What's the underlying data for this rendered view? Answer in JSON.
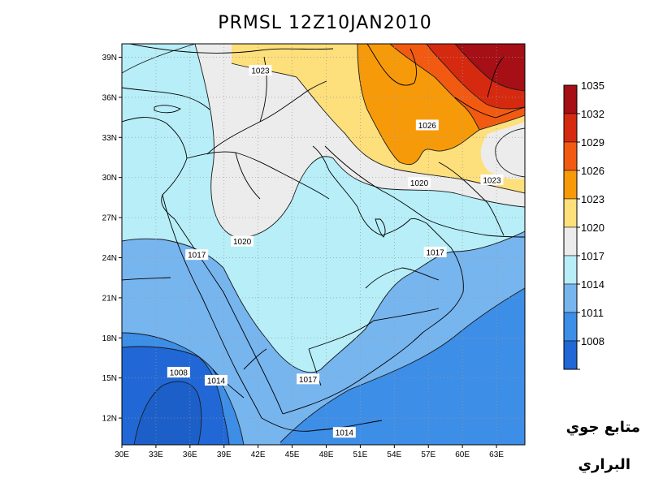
{
  "title": "PRMSL 12Z10JAN2010",
  "lon_ticks": [
    "30E",
    "33E",
    "36E",
    "39E",
    "42E",
    "45E",
    "48E",
    "51E",
    "54E",
    "57E",
    "60E",
    "63E"
  ],
  "lat_ticks": [
    "12N",
    "15N",
    "18N",
    "21N",
    "24N",
    "27N",
    "30N",
    "33N",
    "36N",
    "39N"
  ],
  "contour_labels": [
    {
      "text": "1023",
      "lon": 42.2,
      "lat": 38.0
    },
    {
      "text": "1026",
      "lon": 56.9,
      "lat": 33.9
    },
    {
      "text": "1020",
      "lon": 56.2,
      "lat": 29.6
    },
    {
      "text": "1023",
      "lon": 62.6,
      "lat": 29.8
    },
    {
      "text": "1020",
      "lon": 40.6,
      "lat": 25.2
    },
    {
      "text": "1017",
      "lon": 36.6,
      "lat": 24.2
    },
    {
      "text": "1017",
      "lon": 57.6,
      "lat": 24.4
    },
    {
      "text": "1008",
      "lon": 35.0,
      "lat": 15.4
    },
    {
      "text": "1014",
      "lon": 38.3,
      "lat": 14.8
    },
    {
      "text": "1017",
      "lon": 46.4,
      "lat": 14.9
    },
    {
      "text": "1014",
      "lon": 49.6,
      "lat": 10.9
    }
  ],
  "colorbar": {
    "labels": [
      "1035",
      "1032",
      "1029",
      "1026",
      "1023",
      "1020",
      "1017",
      "1014",
      "1011",
      "1008"
    ],
    "colors": [
      "#a50f15",
      "#d62a10",
      "#f25a12",
      "#f79a0a",
      "#fddf7c",
      "#ececec",
      "#b7eef8",
      "#77b5ef",
      "#3d8ee7",
      "#2168d6"
    ]
  },
  "credit": {
    "line1": "متابع جوي",
    "line2": "البراري"
  }
}
